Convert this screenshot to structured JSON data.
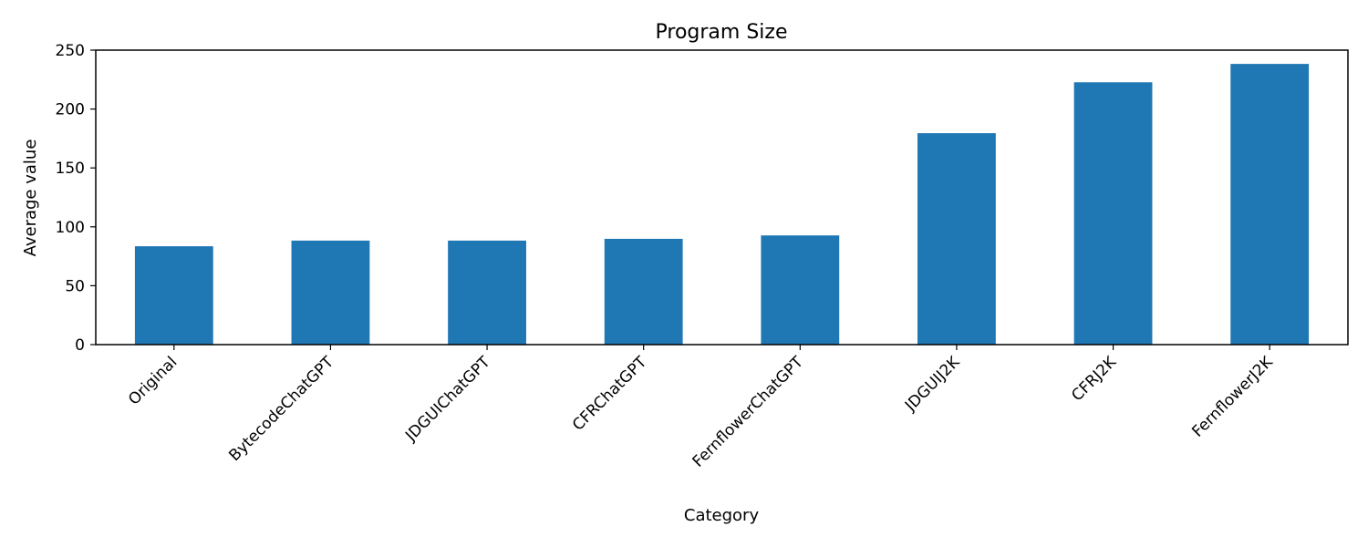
{
  "chart_data": {
    "type": "bar",
    "title": "Program Size",
    "xlabel": "Category",
    "ylabel": "Average value",
    "categories": [
      "Original",
      "BytecodeChatGPT",
      "JDGUIChatGPT",
      "CFRChatGPT",
      "FernflowerChatGPT",
      "JDGUIJ2K",
      "CFRJ2K",
      "FernflowerJ2K"
    ],
    "values": [
      83.5,
      88.3,
      88.3,
      89.8,
      92.7,
      179.5,
      222.7,
      238.3
    ],
    "ylim": [
      0,
      250
    ],
    "yticks": [
      0,
      50,
      100,
      150,
      200,
      250
    ],
    "grid": false,
    "legend": "none",
    "colors": {
      "bar": "#1f77b4",
      "axis": "#000000"
    }
  }
}
